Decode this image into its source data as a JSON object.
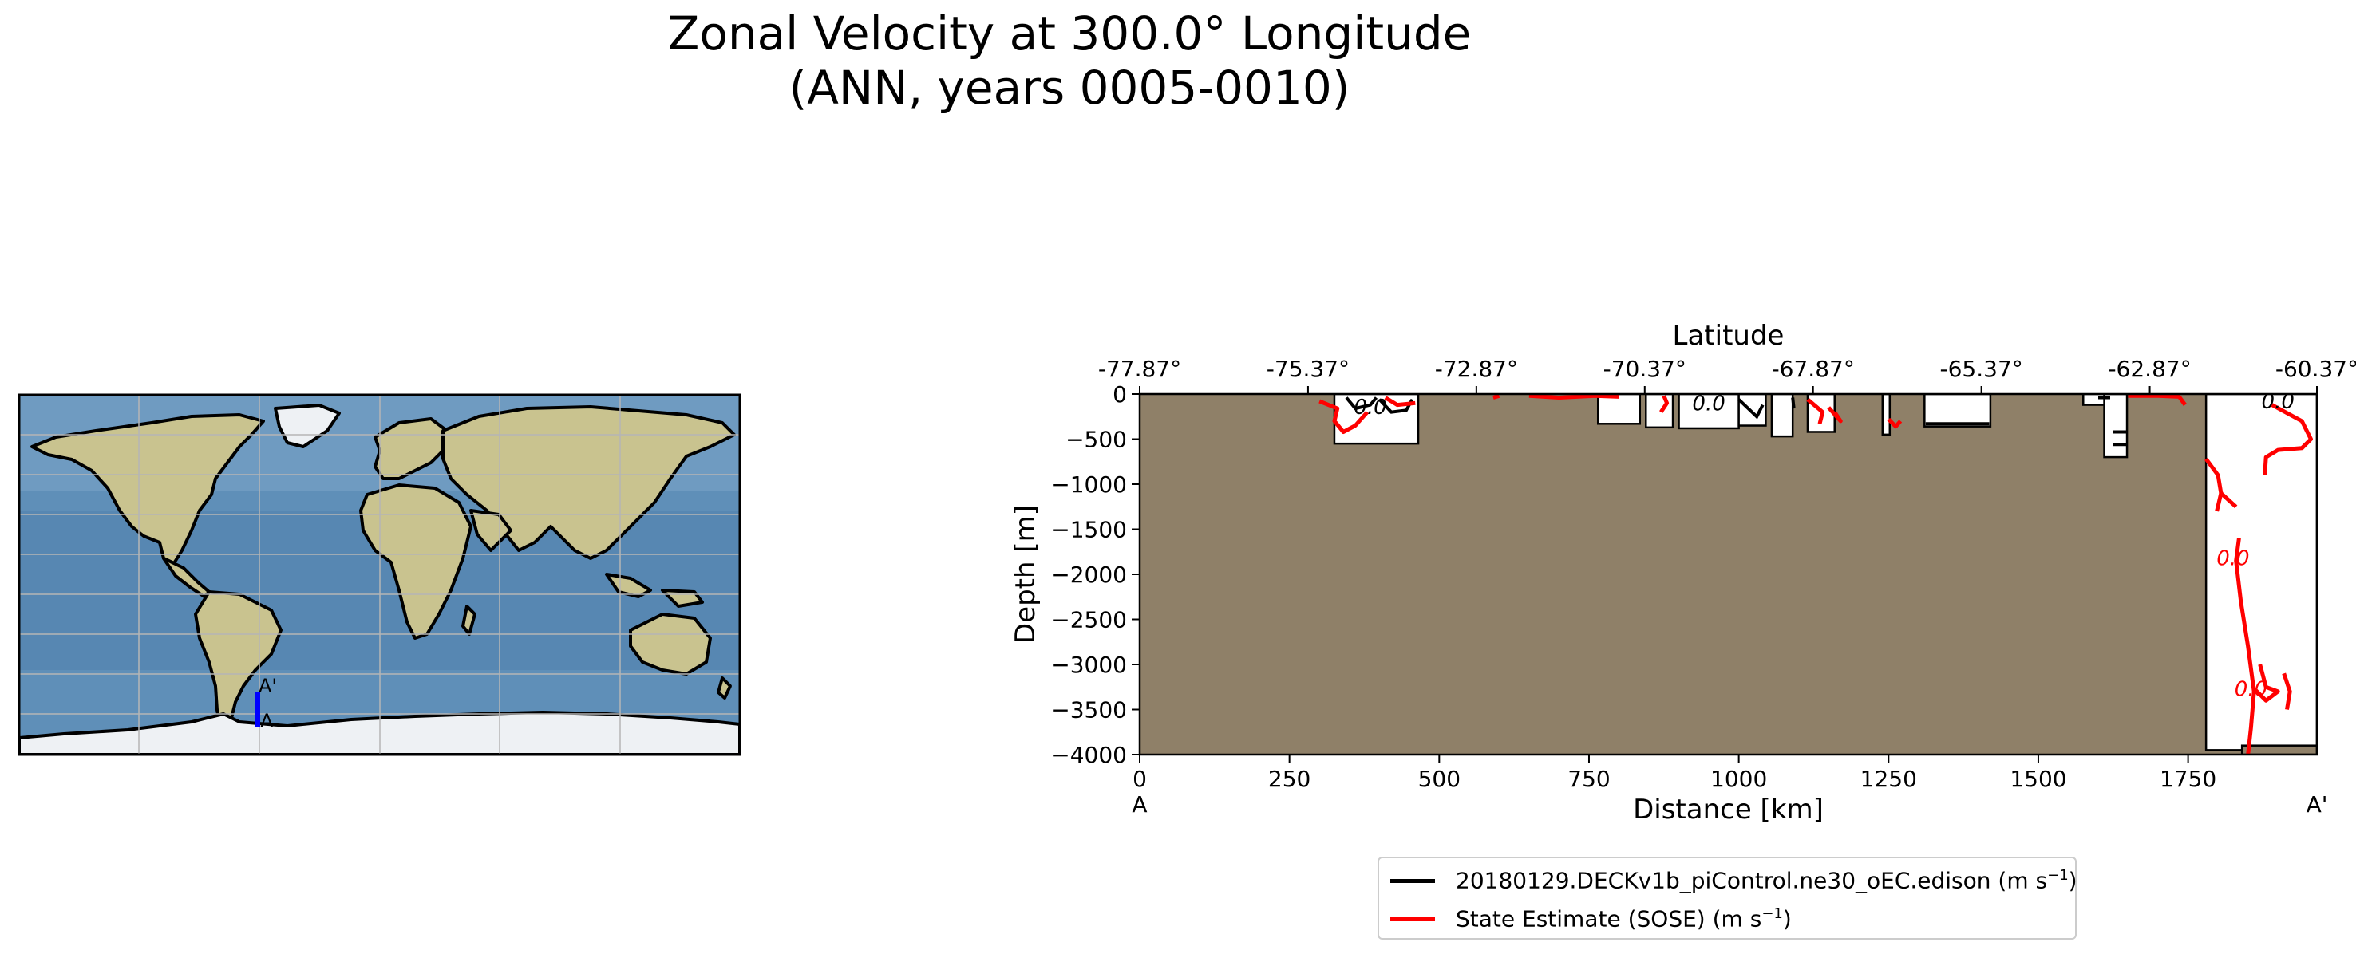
{
  "figure": {
    "title_line1": "Zonal Velocity at 300.0° Longitude",
    "title_line2": "(ANN, years 0005-0010)"
  },
  "map": {
    "transect_start_label": "A",
    "transect_end_label": "A'",
    "transect_color": "#0000ff",
    "ocean_color": "#5f8fb8",
    "land_color": "#c9c38f",
    "ice_color": "#eef1f4",
    "grid_color": "#b5b5b5"
  },
  "chart_data": {
    "type": "contour",
    "title": "Zonal Velocity at 300.0° Longitude (ANN, years 0005-0010)",
    "xlabel": "Distance [km]",
    "ylabel": "Depth [m]",
    "top_xlabel": "Latitude",
    "xlim": [
      0,
      1965
    ],
    "ylim": [
      -4000,
      0
    ],
    "x_ticks": [
      0,
      250,
      500,
      750,
      1000,
      1250,
      1500,
      1750
    ],
    "x_tick_labels": [
      "0",
      "250",
      "500",
      "750",
      "1000",
      "1250",
      "1500",
      "1750"
    ],
    "y_ticks": [
      0,
      -500,
      -1000,
      -1500,
      -2000,
      -2500,
      -3000,
      -3500,
      -4000
    ],
    "y_tick_labels": [
      "0",
      "−500",
      "−1000",
      "−1500",
      "−2000",
      "−2500",
      "−3000",
      "−3500",
      "−4000"
    ],
    "top_ticks": [
      0,
      281,
      562,
      843,
      1124,
      1405,
      1686,
      1965
    ],
    "top_tick_labels": [
      "-77.87°",
      "-75.37°",
      "-72.87°",
      "-70.37°",
      "-67.87°",
      "-65.37°",
      "-62.87°",
      "-60.37°"
    ],
    "start_label": "A",
    "end_label": "A'",
    "bathymetry_color": "#8f8068",
    "bathymetry_description": "seafloor mask: land/ice shelf covers everything except shallow pockets and the deep channel near 1780-1965 km",
    "water_regions": [
      {
        "x": [
          325,
          465
        ],
        "depth": [
          0,
          -550
        ]
      },
      {
        "x": [
          765,
          835
        ],
        "depth": [
          0,
          -330
        ]
      },
      {
        "x": [
          845,
          890
        ],
        "depth": [
          0,
          -370
        ]
      },
      {
        "x": [
          900,
          1000
        ],
        "depth": [
          0,
          -380
        ]
      },
      {
        "x": [
          1000,
          1045
        ],
        "depth": [
          0,
          -350
        ]
      },
      {
        "x": [
          1055,
          1090
        ],
        "depth": [
          0,
          -470
        ]
      },
      {
        "x": [
          1115,
          1160
        ],
        "depth": [
          0,
          -420
        ]
      },
      {
        "x": [
          1240,
          1252
        ],
        "depth": [
          0,
          -450
        ]
      },
      {
        "x": [
          1310,
          1420
        ],
        "depth": [
          0,
          -360
        ]
      },
      {
        "x": [
          1575,
          1620
        ],
        "depth": [
          0,
          -120
        ]
      },
      {
        "x": [
          1610,
          1648
        ],
        "depth": [
          0,
          -700
        ]
      },
      {
        "x": [
          1780,
          1965
        ],
        "depth": [
          0,
          -3950
        ]
      }
    ],
    "contour_level_label": "0.0",
    "series": [
      {
        "name": "20180129.DECKv1b_piControl.ne30_oEC.edison",
        "unit": "m s-1",
        "color": "#000000"
      },
      {
        "name": "State Estimate (SOSE)",
        "unit": "m s-1",
        "color": "#ff0000"
      }
    ],
    "legend_position": "bottom-center"
  },
  "legend": {
    "items": [
      {
        "label": "20180129.DECKv1b_piControl.ne30_oEC.edison (m s",
        "exponent": "−1",
        "suffix": ")",
        "color": "#000000"
      },
      {
        "label": "State Estimate (SOSE) (m s",
        "exponent": "−1",
        "suffix": ")",
        "color": "#ff0000"
      }
    ]
  }
}
